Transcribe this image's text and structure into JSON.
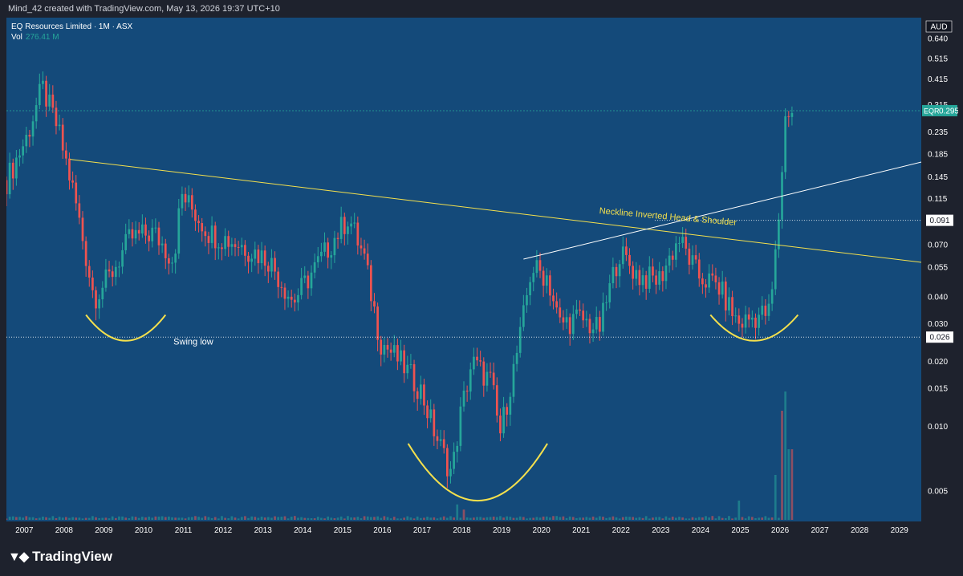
{
  "header": {
    "caption": "Mind_42 created with TradingView.com, May 13, 2026 19:37 UTC+10"
  },
  "legend": {
    "title": "EQ Resources Limited · 1M · ASX",
    "vol_label": "Vol",
    "vol_value": "276.41 M"
  },
  "brand": {
    "name": "TradingView"
  },
  "colors": {
    "background": "#144a7a",
    "up": "#26a69a",
    "down": "#ef5350",
    "neckline": "#f4e04d",
    "trendline": "#ffffff",
    "arc": "#f4e04d"
  },
  "chart_data": {
    "type": "candlestick",
    "symbol": "EQR",
    "currency": "AUD",
    "interval": "1M",
    "y_scale": "log",
    "ylim": [
      0.0036,
      0.8
    ],
    "xlim": [
      2006.6,
      2029.6
    ],
    "x_ticks": [
      "2007",
      "2008",
      "2009",
      "2010",
      "2011",
      "2012",
      "2013",
      "2014",
      "2015",
      "2016",
      "2017",
      "2018",
      "2019",
      "2020",
      "2021",
      "2022",
      "2023",
      "2024",
      "2025",
      "2026",
      "2027",
      "2028",
      "2029"
    ],
    "y_ticks": [
      "0.640",
      "0.515",
      "0.415",
      "0.315",
      "0.235",
      "0.185",
      "0.145",
      "0.115",
      "0.091",
      "0.070",
      "0.055",
      "0.040",
      "0.030",
      "0.026",
      "0.020",
      "0.015",
      "0.010",
      "0.005"
    ],
    "last_price": {
      "label": "EQR",
      "value": "0.295"
    },
    "levels": [
      {
        "value": "0.091",
        "x_start": 2022.9
      },
      {
        "value": "0.026",
        "x_start": 2006.6
      }
    ],
    "anchors": [
      {
        "x": 2006.6,
        "y": 0.14
      },
      {
        "x": 2007.1,
        "y": 0.22
      },
      {
        "x": 2007.5,
        "y": 0.38
      },
      {
        "x": 2007.9,
        "y": 0.24
      },
      {
        "x": 2008.3,
        "y": 0.12
      },
      {
        "x": 2008.8,
        "y": 0.04
      },
      {
        "x": 2009.2,
        "y": 0.05
      },
      {
        "x": 2009.7,
        "y": 0.075
      },
      {
        "x": 2010.3,
        "y": 0.08
      },
      {
        "x": 2010.8,
        "y": 0.06
      },
      {
        "x": 2011.0,
        "y": 0.12
      },
      {
        "x": 2011.7,
        "y": 0.08
      },
      {
        "x": 2012.5,
        "y": 0.07
      },
      {
        "x": 2013.2,
        "y": 0.06
      },
      {
        "x": 2013.8,
        "y": 0.038
      },
      {
        "x": 2014.5,
        "y": 0.06
      },
      {
        "x": 2015.2,
        "y": 0.095
      },
      {
        "x": 2015.6,
        "y": 0.06
      },
      {
        "x": 2016.0,
        "y": 0.025
      },
      {
        "x": 2016.5,
        "y": 0.02
      },
      {
        "x": 2017.0,
        "y": 0.015
      },
      {
        "x": 2017.4,
        "y": 0.009
      },
      {
        "x": 2017.8,
        "y": 0.006
      },
      {
        "x": 2018.0,
        "y": 0.011
      },
      {
        "x": 2018.3,
        "y": 0.02
      },
      {
        "x": 2018.8,
        "y": 0.016
      },
      {
        "x": 2019.0,
        "y": 0.009
      },
      {
        "x": 2019.5,
        "y": 0.025
      },
      {
        "x": 2019.8,
        "y": 0.055
      },
      {
        "x": 2020.2,
        "y": 0.05
      },
      {
        "x": 2020.5,
        "y": 0.03
      },
      {
        "x": 2021.0,
        "y": 0.032
      },
      {
        "x": 2021.5,
        "y": 0.028
      },
      {
        "x": 2022.0,
        "y": 0.065
      },
      {
        "x": 2022.5,
        "y": 0.05
      },
      {
        "x": 2023.0,
        "y": 0.048
      },
      {
        "x": 2023.5,
        "y": 0.075
      },
      {
        "x": 2024.0,
        "y": 0.05
      },
      {
        "x": 2024.5,
        "y": 0.045
      },
      {
        "x": 2025.0,
        "y": 0.03
      },
      {
        "x": 2025.5,
        "y": 0.033
      },
      {
        "x": 2025.8,
        "y": 0.034
      },
      {
        "x": 2026.0,
        "y": 0.085
      },
      {
        "x": 2026.2,
        "y": 0.3
      },
      {
        "x": 2026.35,
        "y": 0.295
      }
    ],
    "volume_spikes": [
      {
        "x": 2017.9,
        "v": 0.12
      },
      {
        "x": 2018.1,
        "v": 0.08
      },
      {
        "x": 2025.0,
        "v": 0.15
      },
      {
        "x": 2025.9,
        "v": 0.35
      },
      {
        "x": 2026.1,
        "v": 0.85
      },
      {
        "x": 2026.2,
        "v": 1.0
      },
      {
        "x": 2026.3,
        "v": 0.55
      }
    ],
    "lines": [
      {
        "name": "neckline",
        "from": {
          "x": 2008.2,
          "y": 0.175
        },
        "to": {
          "x": 2029.6,
          "y": 0.058
        }
      },
      {
        "name": "trendline",
        "from": {
          "x": 2019.6,
          "y": 0.06
        },
        "to": {
          "x": 2029.6,
          "y": 0.17
        }
      }
    ],
    "arcs": [
      {
        "name": "left-shoulder",
        "x1": 2008.6,
        "x2": 2010.6,
        "y_top": 0.033,
        "y_bottom": 0.025
      },
      {
        "name": "head",
        "x1": 2016.7,
        "x2": 2020.2,
        "y_top": 0.0083,
        "y_bottom": 0.0045
      },
      {
        "name": "right-shoulder",
        "x1": 2024.3,
        "x2": 2026.5,
        "y_top": 0.033,
        "y_bottom": 0.025
      }
    ],
    "annotations": [
      {
        "text": "Neckline Inverted Head & Shoulder",
        "x": 2021.5,
        "y": 0.098
      },
      {
        "text": "Swing low",
        "x": 2010.8,
        "y": 0.024
      }
    ]
  }
}
